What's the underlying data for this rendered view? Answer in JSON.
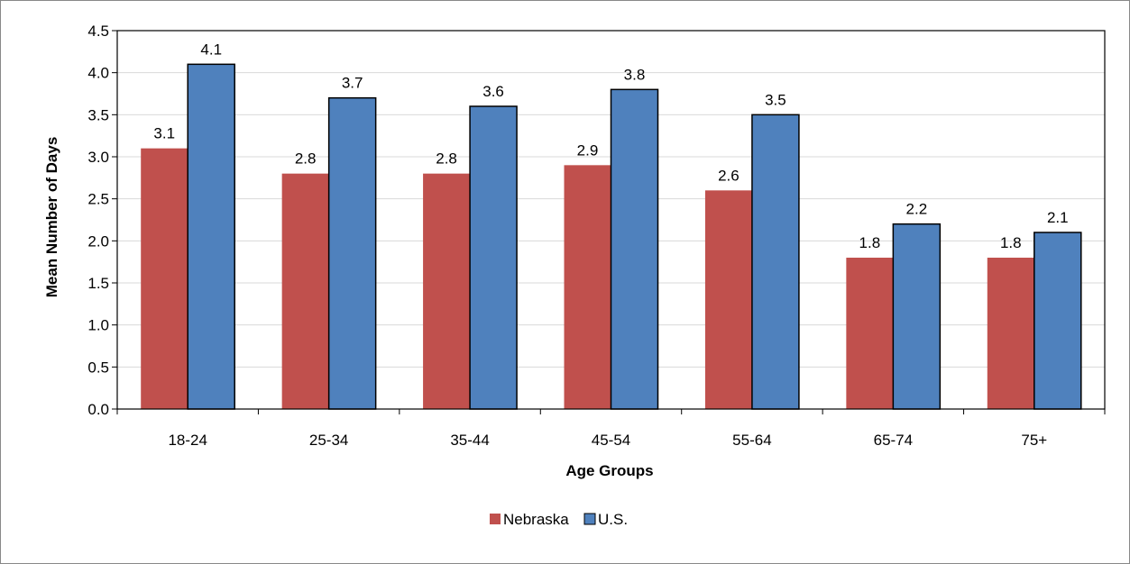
{
  "chart_data": {
    "type": "bar",
    "categories": [
      "18-24",
      "25-34",
      "35-44",
      "45-54",
      "55-64",
      "65-74",
      "75+"
    ],
    "series": [
      {
        "name": "Nebraska",
        "color": "#c0504d",
        "values": [
          3.1,
          2.8,
          2.8,
          2.9,
          2.6,
          1.8,
          1.8
        ]
      },
      {
        "name": "U.S.",
        "color": "#4f81bd",
        "values": [
          4.1,
          3.7,
          3.6,
          3.8,
          3.5,
          2.2,
          2.1
        ]
      }
    ],
    "data_labels": {
      "Nebraska": [
        "3.1",
        "2.8",
        "2.8",
        "2.9",
        "2.6",
        "1.8",
        "1.8"
      ],
      "U.S.": [
        "4.1",
        "3.7",
        "3.6",
        "3.8",
        "3.5",
        "2.2",
        "2.1"
      ]
    },
    "title": "",
    "xlabel": "Age Groups",
    "ylabel": "Mean Number of Days",
    "ylim": [
      0,
      4.5
    ],
    "yticks": [
      "0.0",
      "0.5",
      "1.0",
      "1.5",
      "2.0",
      "2.5",
      "3.0",
      "3.5",
      "4.0",
      "4.5"
    ],
    "grid": true,
    "legend_position": "bottom"
  }
}
